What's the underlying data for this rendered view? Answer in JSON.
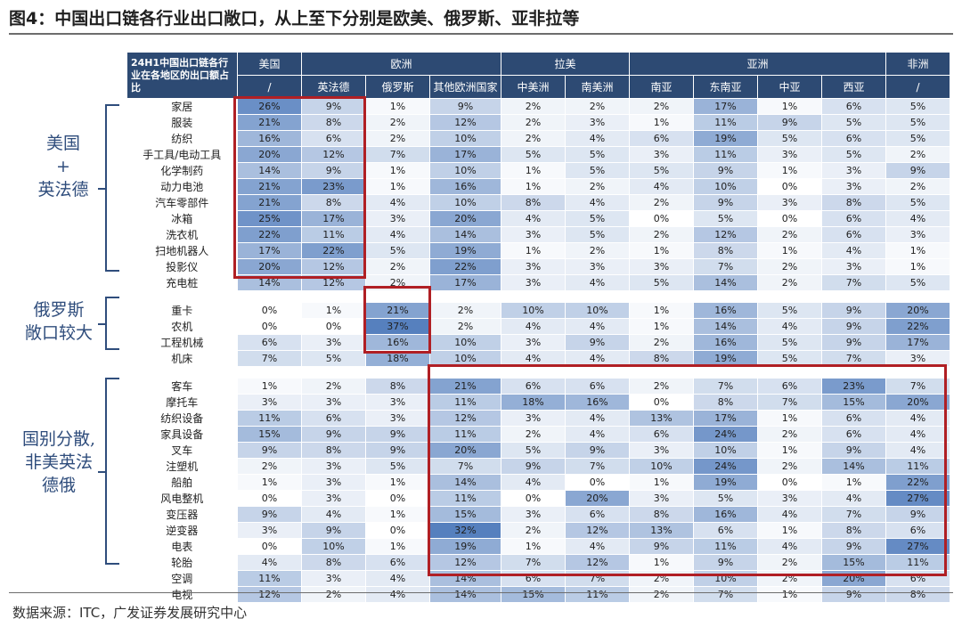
{
  "title": "图4：中国出口链各行业出口敞口，从上至下分别是欧美、俄罗斯、亚非拉等",
  "source": "数据来源：ITC，广发证券发展研究中心",
  "group_labels": {
    "g1_line1": "美国",
    "g1_line2": "+",
    "g1_line3": "英法德",
    "g2_line1": "俄罗斯",
    "g2_line2": "敞口较大",
    "g3_line1": "国别分散,",
    "g3_line2": "非美英法",
    "g3_line3": "德俄"
  },
  "colors": {
    "header_bg": "#2d4a73",
    "header_text": "#ffffff",
    "heat_low": "#ffffff",
    "heat_high": "#5f8ac6",
    "highlight_box": "#b01f24",
    "bracket": "#2f4d7c"
  },
  "chart_data": {
    "type": "heatmap",
    "unit": "%",
    "corner_label": "24H1中国出口链各行业在各地区的出口额占比",
    "regions": [
      {
        "name": "美国",
        "span": 1
      },
      {
        "name": "欧洲",
        "span": 3
      },
      {
        "name": "拉美",
        "span": 2
      },
      {
        "name": "亚洲",
        "span": 4
      },
      {
        "name": "非洲",
        "span": 1
      }
    ],
    "columns": [
      "/",
      "英法德",
      "俄罗斯",
      "其他欧洲国家",
      "中美洲",
      "南美洲",
      "南亚",
      "东南亚",
      "中亚",
      "西亚",
      "/"
    ],
    "groups": [
      {
        "rows": [
          {
            "label": "家居",
            "values": [
              26,
              9,
              1,
              9,
              2,
              2,
              2,
              17,
              1,
              6,
              5
            ]
          },
          {
            "label": "服装",
            "values": [
              21,
              8,
              2,
              12,
              2,
              3,
              1,
              11,
              9,
              5,
              5
            ]
          },
          {
            "label": "纺织",
            "values": [
              16,
              6,
              2,
              10,
              2,
              4,
              6,
              19,
              5,
              6,
              5
            ]
          },
          {
            "label": "手工具/电动工具",
            "values": [
              20,
              12,
              7,
              17,
              5,
              5,
              3,
              11,
              3,
              5,
              2
            ]
          },
          {
            "label": "化学制药",
            "values": [
              14,
              9,
              1,
              10,
              1,
              5,
              5,
              9,
              1,
              3,
              9
            ]
          },
          {
            "label": "动力电池",
            "values": [
              21,
              23,
              1,
              16,
              1,
              2,
              4,
              10,
              0,
              3,
              2
            ]
          },
          {
            "label": "汽车零部件",
            "values": [
              21,
              8,
              4,
              10,
              8,
              4,
              2,
              9,
              3,
              8,
              5
            ]
          },
          {
            "label": "冰箱",
            "values": [
              25,
              17,
              3,
              20,
              4,
              5,
              0,
              5,
              0,
              6,
              4
            ]
          },
          {
            "label": "洗衣机",
            "values": [
              22,
              11,
              4,
              14,
              3,
              5,
              2,
              12,
              2,
              6,
              3
            ]
          },
          {
            "label": "扫地机器人",
            "values": [
              17,
              22,
              5,
              19,
              1,
              2,
              1,
              8,
              1,
              4,
              1
            ]
          },
          {
            "label": "投影仪",
            "values": [
              20,
              12,
              2,
              22,
              3,
              3,
              3,
              7,
              2,
              3,
              1
            ]
          },
          {
            "label": "充电桩",
            "values": [
              14,
              12,
              2,
              17,
              3,
              4,
              5,
              14,
              2,
              7,
              5
            ]
          }
        ]
      },
      {
        "rows": [
          {
            "label": "重卡",
            "values": [
              0,
              1,
              21,
              2,
              10,
              10,
              1,
              16,
              5,
              9,
              20
            ]
          },
          {
            "label": "农机",
            "values": [
              0,
              0,
              37,
              2,
              4,
              4,
              1,
              14,
              4,
              9,
              22
            ]
          },
          {
            "label": "工程机械",
            "values": [
              6,
              3,
              16,
              10,
              3,
              9,
              2,
              16,
              5,
              9,
              17
            ]
          },
          {
            "label": "机床",
            "values": [
              7,
              5,
              18,
              10,
              4,
              4,
              8,
              19,
              5,
              7,
              3
            ]
          }
        ]
      },
      {
        "rows": [
          {
            "label": "客车",
            "values": [
              1,
              2,
              8,
              21,
              6,
              6,
              2,
              7,
              6,
              23,
              7
            ]
          },
          {
            "label": "摩托车",
            "values": [
              3,
              3,
              3,
              11,
              18,
              16,
              0,
              8,
              7,
              15,
              20
            ]
          },
          {
            "label": "纺织设备",
            "values": [
              11,
              6,
              3,
              12,
              3,
              4,
              13,
              17,
              1,
              6,
              4
            ]
          },
          {
            "label": "家具设备",
            "values": [
              15,
              9,
              9,
              11,
              2,
              4,
              6,
              24,
              2,
              6,
              4
            ]
          },
          {
            "label": "叉车",
            "values": [
              9,
              8,
              9,
              20,
              5,
              9,
              3,
              10,
              1,
              9,
              4
            ]
          },
          {
            "label": "注塑机",
            "values": [
              2,
              3,
              5,
              7,
              9,
              7,
              10,
              24,
              2,
              14,
              11
            ]
          },
          {
            "label": "船舶",
            "values": [
              1,
              3,
              1,
              14,
              4,
              0,
              1,
              19,
              0,
              1,
              22
            ]
          },
          {
            "label": "风电整机",
            "values": [
              0,
              3,
              0,
              11,
              0,
              20,
              3,
              5,
              3,
              4,
              27
            ]
          },
          {
            "label": "变压器",
            "values": [
              9,
              4,
              1,
              15,
              3,
              6,
              8,
              16,
              4,
              7,
              9
            ]
          },
          {
            "label": "逆变器",
            "values": [
              3,
              9,
              0,
              32,
              2,
              12,
              13,
              6,
              1,
              8,
              6
            ]
          },
          {
            "label": "电表",
            "values": [
              0,
              10,
              1,
              19,
              1,
              4,
              9,
              11,
              4,
              9,
              27
            ]
          },
          {
            "label": "轮胎",
            "values": [
              4,
              8,
              6,
              12,
              7,
              12,
              1,
              9,
              2,
              15,
              11
            ]
          },
          {
            "label": "空调",
            "values": [
              11,
              3,
              4,
              14,
              6,
              7,
              2,
              10,
              2,
              20,
              6
            ]
          },
          {
            "label": "电视",
            "values": [
              12,
              2,
              4,
              14,
              15,
              11,
              2,
              7,
              1,
              9,
              8
            ]
          }
        ]
      }
    ]
  }
}
